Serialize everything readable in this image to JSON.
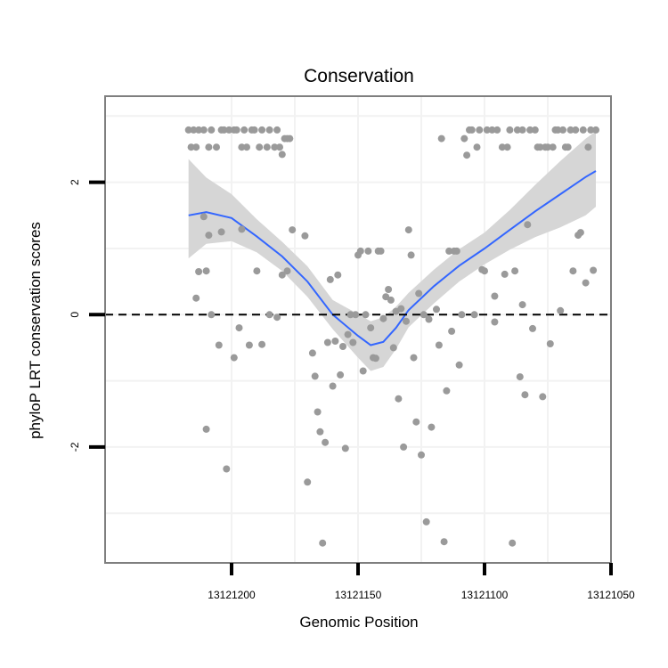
{
  "chart_data": {
    "type": "scatter",
    "title": "Conservation",
    "xlabel": "Genomic Position",
    "ylabel": "phyloP LRT conservation scores",
    "x_reversed": true,
    "xlim": [
      13121250,
      13121050
    ],
    "ylim": [
      -3.75,
      3.3
    ],
    "x_ticks": [
      13121200,
      13121150,
      13121100,
      13121050
    ],
    "x_tick_labels": [
      "13121200",
      "13121150",
      "13121100",
      "13121050"
    ],
    "y_ticks": [
      -2,
      0,
      2
    ],
    "y_tick_labels": [
      "-2",
      "0",
      "2"
    ],
    "reference_line": {
      "y": 0,
      "style": "dashed",
      "color": "#000000"
    },
    "colors": {
      "points": "#9a9a9a",
      "smooth_line": "#3366ff",
      "confidence_band": "#d6d6d6",
      "panel_border": "#7f7f7f",
      "grid": "#f2f2f2"
    },
    "points": [
      {
        "x": 13121217,
        "y": 2.79
      },
      {
        "x": 13121215,
        "y": 2.79
      },
      {
        "x": 13121214,
        "y": 2.53
      },
      {
        "x": 13121213,
        "y": 2.79
      },
      {
        "x": 13121211,
        "y": 2.79
      },
      {
        "x": 13121209,
        "y": 2.53
      },
      {
        "x": 13121208,
        "y": 2.79
      },
      {
        "x": 13121206,
        "y": 2.53
      },
      {
        "x": 13121204,
        "y": 2.79
      },
      {
        "x": 13121203,
        "y": 2.79
      },
      {
        "x": 13121201,
        "y": 2.79
      },
      {
        "x": 13121199,
        "y": 2.79
      },
      {
        "x": 13121198,
        "y": 2.79
      },
      {
        "x": 13121196,
        "y": 2.53
      },
      {
        "x": 13121195,
        "y": 2.79
      },
      {
        "x": 13121194,
        "y": 2.53
      },
      {
        "x": 13121192,
        "y": 2.79
      },
      {
        "x": 13121191,
        "y": 2.79
      },
      {
        "x": 13121189,
        "y": 2.53
      },
      {
        "x": 13121188,
        "y": 2.79
      },
      {
        "x": 13121186,
        "y": 2.53
      },
      {
        "x": 13121185,
        "y": 2.79
      },
      {
        "x": 13121183,
        "y": 2.53
      },
      {
        "x": 13121182,
        "y": 2.79
      },
      {
        "x": 13121181,
        "y": 2.53
      },
      {
        "x": 13121180,
        "y": 2.42
      },
      {
        "x": 13121179,
        "y": 2.66
      },
      {
        "x": 13121178,
        "y": 2.66
      },
      {
        "x": 13121177,
        "y": 2.66
      },
      {
        "x": 13121216,
        "y": 2.53
      },
      {
        "x": 13121214,
        "y": 0.25
      },
      {
        "x": 13121213,
        "y": 0.65
      },
      {
        "x": 13121211,
        "y": 1.48
      },
      {
        "x": 13121210,
        "y": -1.73
      },
      {
        "x": 13121210,
        "y": 0.66
      },
      {
        "x": 13121209,
        "y": 1.2
      },
      {
        "x": 13121208,
        "y": 0.0
      },
      {
        "x": 13121205,
        "y": -0.46
      },
      {
        "x": 13121204,
        "y": 1.25
      },
      {
        "x": 13121202,
        "y": -2.33
      },
      {
        "x": 13121199,
        "y": -0.65
      },
      {
        "x": 13121197,
        "y": -0.2
      },
      {
        "x": 13121196,
        "y": 1.29
      },
      {
        "x": 13121193,
        "y": -0.46
      },
      {
        "x": 13121190,
        "y": 0.66
      },
      {
        "x": 13121188,
        "y": -0.45
      },
      {
        "x": 13121185,
        "y": 0.0
      },
      {
        "x": 13121182,
        "y": -0.04
      },
      {
        "x": 13121180,
        "y": 0.6
      },
      {
        "x": 13121178,
        "y": 0.66
      },
      {
        "x": 13121176,
        "y": 1.28
      },
      {
        "x": 13121171,
        "y": 1.19
      },
      {
        "x": 13121170,
        "y": -2.53
      },
      {
        "x": 13121168,
        "y": -0.58
      },
      {
        "x": 13121167,
        "y": -0.93
      },
      {
        "x": 13121166,
        "y": -1.47
      },
      {
        "x": 13121165,
        "y": -1.77
      },
      {
        "x": 13121164,
        "y": -3.45
      },
      {
        "x": 13121163,
        "y": -1.93
      },
      {
        "x": 13121162,
        "y": -0.42
      },
      {
        "x": 13121161,
        "y": 0.53
      },
      {
        "x": 13121160,
        "y": -1.08
      },
      {
        "x": 13121159,
        "y": -0.4
      },
      {
        "x": 13121158,
        "y": 0.6
      },
      {
        "x": 13121157,
        "y": -0.91
      },
      {
        "x": 13121156,
        "y": -0.48
      },
      {
        "x": 13121155,
        "y": -2.02
      },
      {
        "x": 13121154,
        "y": -0.3
      },
      {
        "x": 13121153,
        "y": 0.0
      },
      {
        "x": 13121152,
        "y": -0.42
      },
      {
        "x": 13121151,
        "y": 0.0
      },
      {
        "x": 13121150,
        "y": 0.9
      },
      {
        "x": 13121149,
        "y": 0.96
      },
      {
        "x": 13121148,
        "y": -0.85
      },
      {
        "x": 13121147,
        "y": 0.0
      },
      {
        "x": 13121146,
        "y": 0.96
      },
      {
        "x": 13121145,
        "y": -0.2
      },
      {
        "x": 13121144,
        "y": -0.65
      },
      {
        "x": 13121143,
        "y": -0.66
      },
      {
        "x": 13121142,
        "y": 0.96
      },
      {
        "x": 13121141,
        "y": 0.96
      },
      {
        "x": 13121140,
        "y": -0.06
      },
      {
        "x": 13121139,
        "y": 0.27
      },
      {
        "x": 13121138,
        "y": 0.38
      },
      {
        "x": 13121137,
        "y": 0.22
      },
      {
        "x": 13121136,
        "y": -0.5
      },
      {
        "x": 13121135,
        "y": 0.05
      },
      {
        "x": 13121134,
        "y": -1.27
      },
      {
        "x": 13121133,
        "y": 0.09
      },
      {
        "x": 13121132,
        "y": -2.0
      },
      {
        "x": 13121131,
        "y": -0.1
      },
      {
        "x": 13121130,
        "y": 1.28
      },
      {
        "x": 13121129,
        "y": 0.9
      },
      {
        "x": 13121128,
        "y": -0.65
      },
      {
        "x": 13121127,
        "y": -1.62
      },
      {
        "x": 13121126,
        "y": 0.32
      },
      {
        "x": 13121125,
        "y": -2.12
      },
      {
        "x": 13121124,
        "y": 0.0
      },
      {
        "x": 13121123,
        "y": -3.13
      },
      {
        "x": 13121122,
        "y": -0.07
      },
      {
        "x": 13121121,
        "y": -1.7
      },
      {
        "x": 13121119,
        "y": 0.08
      },
      {
        "x": 13121118,
        "y": -0.46
      },
      {
        "x": 13121117,
        "y": 2.66
      },
      {
        "x": 13121116,
        "y": -3.43
      },
      {
        "x": 13121115,
        "y": -1.15
      },
      {
        "x": 13121114,
        "y": 0.96
      },
      {
        "x": 13121113,
        "y": -0.25
      },
      {
        "x": 13121112,
        "y": 0.96
      },
      {
        "x": 13121111,
        "y": 0.96
      },
      {
        "x": 13121110,
        "y": -0.76
      },
      {
        "x": 13121109,
        "y": 0.0
      },
      {
        "x": 13121108,
        "y": 2.66
      },
      {
        "x": 13121107,
        "y": 2.41
      },
      {
        "x": 13121106,
        "y": 2.79
      },
      {
        "x": 13121105,
        "y": 2.79
      },
      {
        "x": 13121104,
        "y": 0.0
      },
      {
        "x": 13121103,
        "y": 2.53
      },
      {
        "x": 13121102,
        "y": 2.79
      },
      {
        "x": 13121101,
        "y": 0.68
      },
      {
        "x": 13121100,
        "y": 0.66
      },
      {
        "x": 13121099,
        "y": 2.79
      },
      {
        "x": 13121097,
        "y": 2.79
      },
      {
        "x": 13121096,
        "y": 0.28
      },
      {
        "x": 13121096,
        "y": -0.11
      },
      {
        "x": 13121095,
        "y": 2.79
      },
      {
        "x": 13121093,
        "y": 2.53
      },
      {
        "x": 13121092,
        "y": 0.61
      },
      {
        "x": 13121091,
        "y": 2.53
      },
      {
        "x": 13121090,
        "y": 2.79
      },
      {
        "x": 13121089,
        "y": -3.45
      },
      {
        "x": 13121088,
        "y": 0.66
      },
      {
        "x": 13121087,
        "y": 2.79
      },
      {
        "x": 13121086,
        "y": -0.94
      },
      {
        "x": 13121085,
        "y": 2.79
      },
      {
        "x": 13121085,
        "y": 0.15
      },
      {
        "x": 13121084,
        "y": -1.21
      },
      {
        "x": 13121083,
        "y": 1.36
      },
      {
        "x": 13121082,
        "y": 2.79
      },
      {
        "x": 13121081,
        "y": -0.21
      },
      {
        "x": 13121080,
        "y": 2.79
      },
      {
        "x": 13121079,
        "y": 2.53
      },
      {
        "x": 13121078,
        "y": 2.53
      },
      {
        "x": 13121077,
        "y": -1.24
      },
      {
        "x": 13121076,
        "y": 2.53
      },
      {
        "x": 13121075,
        "y": 2.53
      },
      {
        "x": 13121074,
        "y": -0.44
      },
      {
        "x": 13121073,
        "y": 2.53
      },
      {
        "x": 13121072,
        "y": 2.79
      },
      {
        "x": 13121071,
        "y": 2.79
      },
      {
        "x": 13121070,
        "y": 0.06
      },
      {
        "x": 13121069,
        "y": 2.79
      },
      {
        "x": 13121068,
        "y": 2.53
      },
      {
        "x": 13121067,
        "y": 2.53
      },
      {
        "x": 13121066,
        "y": 2.79
      },
      {
        "x": 13121065,
        "y": 0.66
      },
      {
        "x": 13121064,
        "y": 2.79
      },
      {
        "x": 13121063,
        "y": 1.2
      },
      {
        "x": 13121062,
        "y": 1.24
      },
      {
        "x": 13121061,
        "y": 2.79
      },
      {
        "x": 13121060,
        "y": 0.48
      },
      {
        "x": 13121059,
        "y": 2.53
      },
      {
        "x": 13121058,
        "y": 2.79
      },
      {
        "x": 13121057,
        "y": 0.67
      },
      {
        "x": 13121056,
        "y": 2.79
      }
    ],
    "smooth": {
      "method": "loess",
      "x": [
        13121217,
        13121210,
        13121200,
        13121190,
        13121180,
        13121170,
        13121160,
        13121150,
        13121145,
        13121140,
        13121135,
        13121130,
        13121120,
        13121110,
        13121100,
        13121090,
        13121080,
        13121070,
        13121060,
        13121056
      ],
      "y": [
        1.5,
        1.55,
        1.46,
        1.18,
        0.88,
        0.5,
        0.0,
        -0.32,
        -0.46,
        -0.41,
        -0.2,
        0.07,
        0.43,
        0.74,
        1.0,
        1.28,
        1.56,
        1.82,
        2.08,
        2.17
      ],
      "lower": [
        0.85,
        1.07,
        1.11,
        0.94,
        0.66,
        0.27,
        -0.22,
        -0.65,
        -0.85,
        -0.79,
        -0.52,
        -0.19,
        0.17,
        0.5,
        0.76,
        0.98,
        1.17,
        1.32,
        1.5,
        1.63
      ],
      "upper": [
        2.35,
        2.07,
        1.82,
        1.44,
        1.1,
        0.73,
        0.22,
        0.01,
        -0.1,
        -0.04,
        0.12,
        0.33,
        0.68,
        0.99,
        1.24,
        1.58,
        1.96,
        2.32,
        2.66,
        2.77
      ]
    }
  }
}
